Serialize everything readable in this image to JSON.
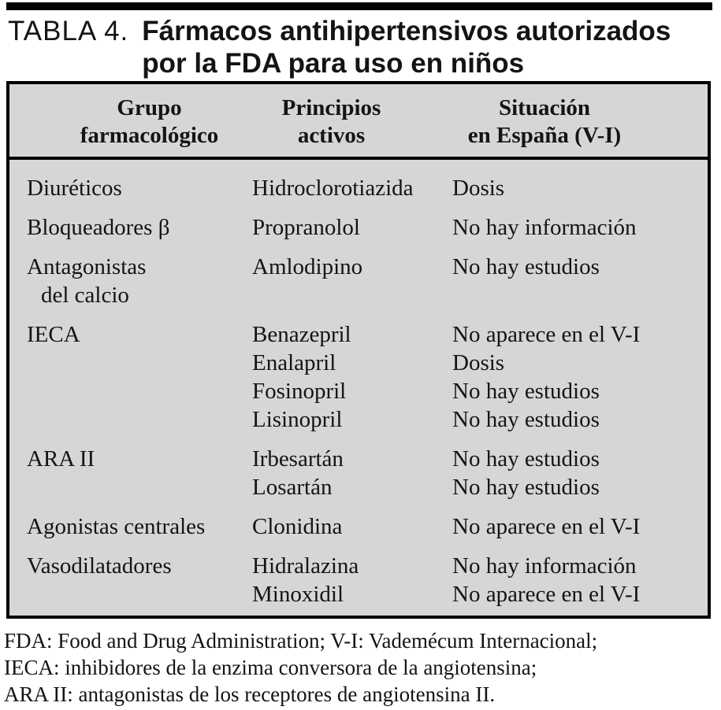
{
  "title": {
    "label": "TABLA 4.",
    "line1": "Fármacos antihipertensivos autorizados",
    "line2": "por la FDA para uso en niños"
  },
  "table": {
    "background_color": "#d6d6d6",
    "border_color": "#000000",
    "columns": [
      {
        "line1": "Grupo",
        "line2": "farmacológico"
      },
      {
        "line1": "Principios",
        "line2": "activos"
      },
      {
        "line1": "Situación",
        "line2": "en España (V-I)"
      }
    ],
    "groups": [
      {
        "group": [
          "Diuréticos"
        ],
        "drugs": [
          "Hidroclorotiazida"
        ],
        "status": [
          "Dosis"
        ]
      },
      {
        "group": [
          "Bloqueadores β"
        ],
        "drugs": [
          "Propranolol"
        ],
        "status": [
          "No hay información"
        ]
      },
      {
        "group": [
          "Antagonistas",
          "del calcio"
        ],
        "drugs": [
          "Amlodipino"
        ],
        "status": [
          "No hay estudios"
        ]
      },
      {
        "group": [
          "IECA"
        ],
        "drugs": [
          "Benazepril",
          "Enalapril",
          "Fosinopril",
          "Lisinopril"
        ],
        "status": [
          "No aparece en el V-I",
          "Dosis",
          "No hay estudios",
          "No hay estudios"
        ]
      },
      {
        "group": [
          "ARA II"
        ],
        "drugs": [
          "Irbesartán",
          "Losartán"
        ],
        "status": [
          "No hay estudios",
          "No hay estudios"
        ]
      },
      {
        "group": [
          "Agonistas centrales"
        ],
        "drugs": [
          "Clonidina"
        ],
        "status": [
          "No aparece en el V-I"
        ]
      },
      {
        "group": [
          "Vasodilatadores"
        ],
        "drugs": [
          "Hidralazina",
          "Minoxidil"
        ],
        "status": [
          "No hay información",
          "No aparece en el V-I"
        ]
      }
    ]
  },
  "footnotes": {
    "line1": "FDA: Food and Drug Administration; V-I: Vademécum Internacional;",
    "line2": "IECA: inhibidores de la enzima conversora de la angiotensina;",
    "line3": "ARA II: antagonistas de los receptores de angiotensina II."
  }
}
